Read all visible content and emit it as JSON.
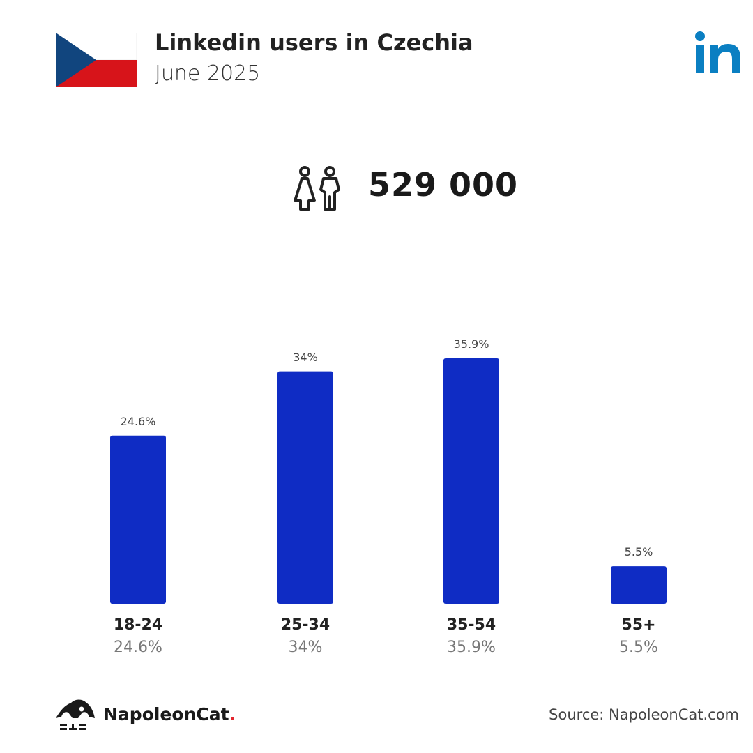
{
  "header": {
    "title": "Linkedin users in Czechia",
    "subtitle": "June 2025"
  },
  "flag": {
    "colors": {
      "white": "#ffffff",
      "red": "#d7141a",
      "blue": "#11457e"
    }
  },
  "brand_logo": {
    "icon": "linkedin-logo",
    "text": "in",
    "color": "#0a7fc2"
  },
  "summary": {
    "icon": "users-icon",
    "total_users": "529 000"
  },
  "chart_data": {
    "type": "bar",
    "categories": [
      "18-24",
      "25-34",
      "35-54",
      "55+"
    ],
    "values": [
      24.6,
      34,
      35.9,
      5.5
    ],
    "value_labels": [
      "24.6%",
      "34%",
      "35.9%",
      "5.5%"
    ],
    "title": "",
    "xlabel": "",
    "ylabel": "",
    "ylim": [
      0,
      35.9
    ],
    "grid": false,
    "legend": "none",
    "bar_color": "#0f2cc4"
  },
  "footer": {
    "brand_name": "NapoleonCat",
    "brand_dot": ".",
    "source": "Source: NapoleonCat.com"
  }
}
